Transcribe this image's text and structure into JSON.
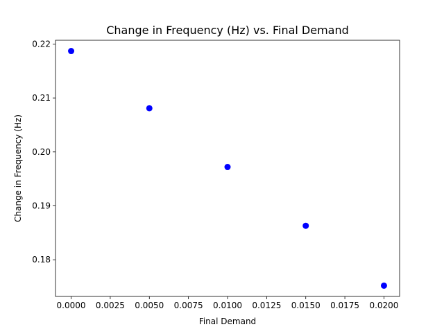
{
  "chart_data": {
    "type": "scatter",
    "title": "Change in Frequency (Hz) vs. Final Demand",
    "xlabel": "Final Demand",
    "ylabel": "Change in Frequency (Hz)",
    "x": [
      0.0,
      0.005,
      0.01,
      0.015,
      0.02
    ],
    "y": [
      0.2187,
      0.2081,
      0.1972,
      0.1863,
      0.1752
    ],
    "xlim": [
      -0.001,
      0.021
    ],
    "ylim": [
      0.1732,
      0.2207
    ],
    "xticks": [
      0.0,
      0.0025,
      0.005,
      0.0075,
      0.01,
      0.0125,
      0.015,
      0.0175,
      0.02
    ],
    "xtick_labels": [
      "0.0000",
      "0.0025",
      "0.0050",
      "0.0075",
      "0.0100",
      "0.0125",
      "0.0150",
      "0.0175",
      "0.0200"
    ],
    "yticks": [
      0.18,
      0.19,
      0.2,
      0.21,
      0.22
    ],
    "ytick_labels": [
      "0.18",
      "0.19",
      "0.20",
      "0.21",
      "0.22"
    ],
    "marker_color": "#0000ff",
    "grid": false,
    "legend": false
  }
}
